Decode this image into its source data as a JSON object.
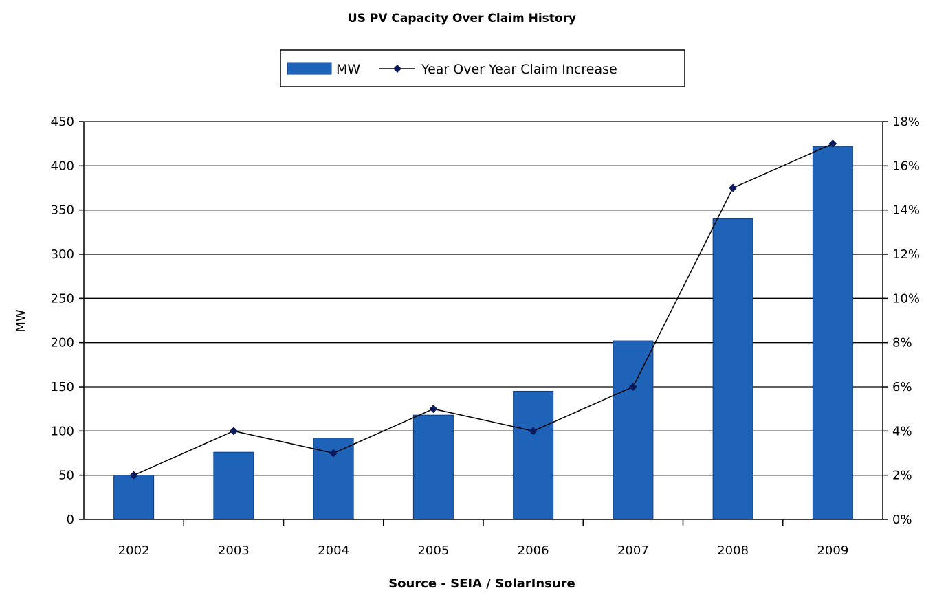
{
  "chart_data": {
    "type": "bar",
    "title": "US PV Capacity Over Claim History",
    "categories": [
      "2002",
      "2003",
      "2004",
      "2005",
      "2006",
      "2007",
      "2008",
      "2009"
    ],
    "series": [
      {
        "name": "MW",
        "type": "bar",
        "axis": "left",
        "values": [
          50,
          76,
          92,
          118,
          145,
          202,
          340,
          422
        ]
      },
      {
        "name": "Year Over Year Claim Increase",
        "type": "line",
        "axis": "right",
        "values": [
          2,
          4,
          3,
          5,
          4,
          6,
          15,
          17
        ]
      }
    ],
    "ylabel": "MW",
    "xlabel": "Source - SEIA / SolarInsure",
    "ylim": [
      0,
      450
    ],
    "y_ticks": [
      "0",
      "50",
      "100",
      "150",
      "200",
      "250",
      "300",
      "350",
      "400",
      "450"
    ],
    "y2lim": [
      0,
      18
    ],
    "y2_ticks": [
      "0%",
      "2%",
      "4%",
      "6%",
      "8%",
      "10%",
      "12%",
      "14%",
      "16%",
      "18%"
    ],
    "grid": true,
    "legend": "top-center",
    "colors": {
      "bar": "#1f63b8",
      "bar_edge": "#0d3d80",
      "line": "#000000",
      "marker": "#0a1a5c"
    }
  }
}
